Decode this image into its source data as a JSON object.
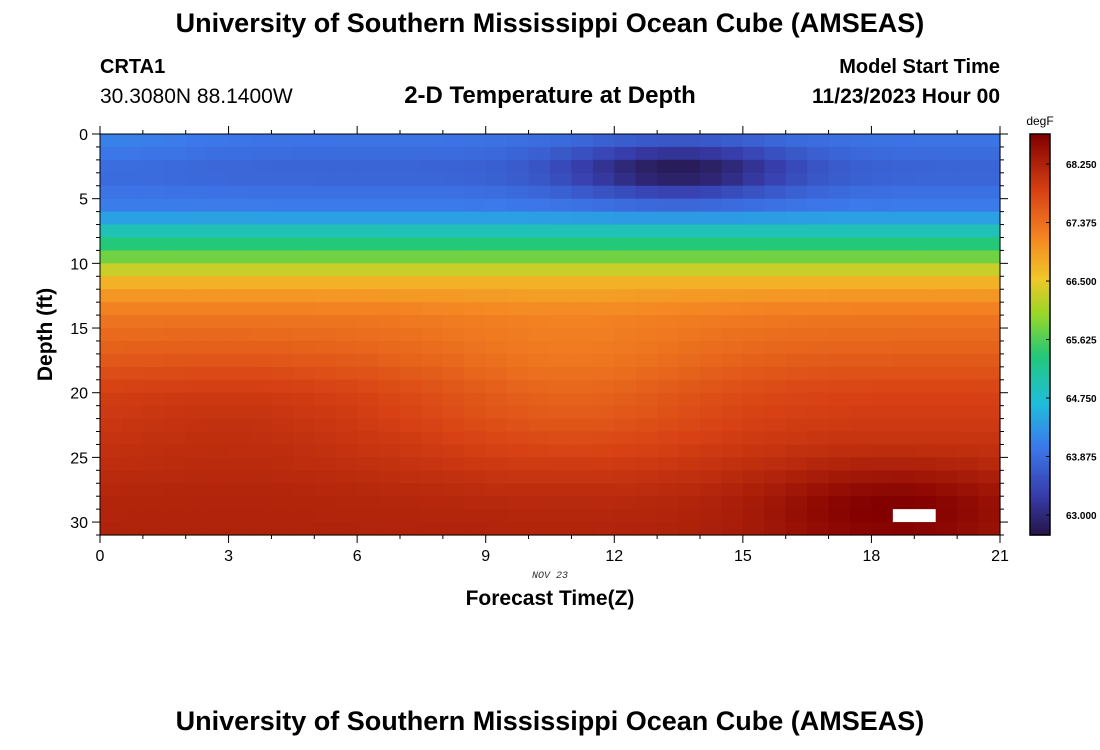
{
  "header": {
    "title": "University of Southern Mississippi Ocean Cube (AMSEAS)",
    "station": "CRTA1",
    "coords": "30.3080N  88.1400W",
    "plot_title": "2-D Temperature at Depth",
    "start_label": "Model Start Time",
    "start_value": "11/23/2023 Hour 00"
  },
  "footer": {
    "title": "University of Southern Mississippi Ocean Cube (AMSEAS)"
  },
  "chart_data": {
    "type": "heatmap",
    "title": "2-D Temperature at Depth",
    "xlabel": "Forecast Time(Z)",
    "ylabel": "Depth (ft)",
    "date_label": "NOV 23",
    "x_range": [
      0,
      21
    ],
    "y_range": [
      0,
      31
    ],
    "x_ticks": [
      0,
      3,
      6,
      9,
      12,
      15,
      18,
      21
    ],
    "y_ticks": [
      0,
      5,
      10,
      15,
      20,
      25,
      30
    ],
    "colorbar": {
      "unit": "degF",
      "range": [
        62.7,
        68.7
      ],
      "tick_values": [
        68.25,
        67.375,
        66.5,
        65.625,
        64.75,
        63.875,
        63.0
      ],
      "tick_labels": [
        "68.250",
        "67.375",
        "66.500",
        "65.625",
        "64.750",
        "63.875",
        "63.000"
      ]
    },
    "grid_resolution": {
      "time_step_hours": 0.5,
      "depth_step_ft": 1
    },
    "profile_depths_ft": [
      0,
      3,
      6,
      7,
      8,
      9,
      10,
      11,
      12,
      14,
      17,
      20,
      25,
      28,
      31
    ],
    "base_profile_degF": [
      64.0,
      63.75,
      64.1,
      64.7,
      65.2,
      65.6,
      66.0,
      66.6,
      66.9,
      67.3,
      67.55,
      67.85,
      68.05,
      68.2,
      68.25
    ],
    "features": [
      {
        "name": "cold core",
        "time_center_hours": 13.5,
        "depth_center_ft": 2.8,
        "anomaly_degF": -1.0
      },
      {
        "name": "warm bottom water",
        "time_center_hours": 18.5,
        "depth_center_ft": 29,
        "anomaly_degF": 0.5
      }
    ],
    "missing_cell": {
      "time_hours": 19,
      "depth_ft": 29
    }
  }
}
